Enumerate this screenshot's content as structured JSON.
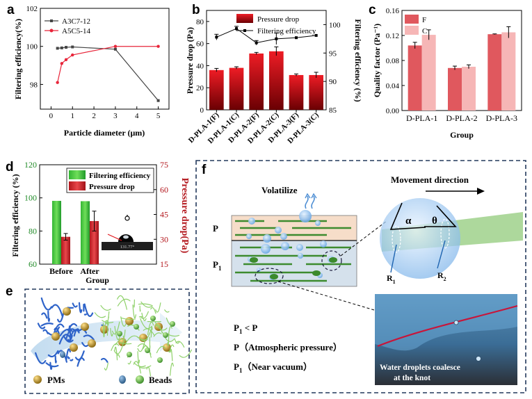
{
  "panel_labels": {
    "a": "a",
    "b": "b",
    "c": "c",
    "d": "d",
    "e": "e",
    "f": "f"
  },
  "chart_data": [
    {
      "panel": "a",
      "type": "line",
      "xlabel": "Particle diameter (μm)",
      "ylabel": "Filtering efficiency(%)",
      "xlim": [
        -0.5,
        5.5
      ],
      "ylim": [
        96.7,
        102
      ],
      "xticks": [
        0,
        1,
        2,
        3,
        4,
        5
      ],
      "yticks": [
        98,
        100,
        102
      ],
      "legend_position": "top-left",
      "series": [
        {
          "name": "A3C7-12",
          "color": "#454545",
          "marker": "square",
          "x": [
            0.3,
            0.5,
            0.7,
            1.0,
            3.0,
            5.0
          ],
          "y": [
            99.9,
            99.92,
            99.95,
            99.97,
            99.85,
            97.15
          ]
        },
        {
          "name": "A5C5-14",
          "color": "#e8253a",
          "marker": "circle",
          "x": [
            0.3,
            0.5,
            0.7,
            1.0,
            3.0,
            5.0
          ],
          "y": [
            98.1,
            99.1,
            99.3,
            99.55,
            100.0,
            100.0
          ]
        }
      ]
    },
    {
      "panel": "b",
      "type": "bar",
      "ylabel": "Pressure drop (Pa)",
      "y2label": "Filtering efficiency (%)",
      "categories": [
        "D-PLA-1(F)",
        "D-PLA-1(C)",
        "D-PLA-2(F)",
        "D-PLA-2(C)",
        "D-PLA-3(F)",
        "D-PLA-3(C)"
      ],
      "ylim": [
        0,
        90
      ],
      "yticks": [
        0,
        20,
        40,
        60,
        80
      ],
      "y2lim": [
        85,
        102.5
      ],
      "y2ticks": [
        85,
        90,
        95,
        100
      ],
      "legend_position": "top",
      "series": [
        {
          "name": "Pressure drop",
          "kind": "bar",
          "values": [
            36,
            38,
            51,
            53,
            31.5,
            31.5
          ],
          "errors": [
            1.5,
            1,
            1,
            4,
            1,
            2.5
          ]
        },
        {
          "name": "Filtering efficiency",
          "kind": "line",
          "values": [
            97.8,
            99.3,
            96.8,
            97.5,
            97.7,
            98.1
          ],
          "errors": [
            0.5,
            0.4,
            0.4,
            1,
            0,
            0
          ]
        }
      ]
    },
    {
      "panel": "c",
      "type": "bar",
      "xlabel": "Group",
      "ylabel": "Quality factor (Pa⁻¹)",
      "categories": [
        "D-PLA-1",
        "D-PLA-2",
        "D-PLA-3"
      ],
      "ylim": [
        0,
        0.16
      ],
      "yticks": [
        0.0,
        0.04,
        0.08,
        0.12,
        0.16
      ],
      "ytick_labels": [
        "0.00",
        "0.04",
        "0.08",
        "0.12",
        "0.16"
      ],
      "legend_position": "top-left",
      "series": [
        {
          "name": "F",
          "color": "#e0585e",
          "values": [
            0.104,
            0.068,
            0.122
          ],
          "errors": [
            0.005,
            0.003,
            0.0005
          ]
        },
        {
          "name": "C",
          "color": "#f6b6b6",
          "values": [
            0.121,
            0.07,
            0.125
          ],
          "errors": [
            0.008,
            0.003,
            0.009
          ]
        }
      ]
    },
    {
      "panel": "d",
      "type": "bar",
      "xlabel": "Group",
      "ylabel": "Filtering efficiency (%)",
      "y2label": "Pressure drop(Pa)",
      "categories": [
        "Before",
        "After"
      ],
      "ylim": [
        60,
        120
      ],
      "yticks": [
        60,
        80,
        100,
        120
      ],
      "y2lim": [
        15,
        75
      ],
      "y2ticks": [
        15,
        30,
        45,
        60,
        75
      ],
      "legend_position": "top",
      "inset_text": "131.77°",
      "series": [
        {
          "name": "Filtering efficiency",
          "axis": "left",
          "values": [
            98.2,
            98.0
          ],
          "errors": [
            0,
            0
          ]
        },
        {
          "name": "Pressure drop",
          "axis": "right",
          "values": [
            31.5,
            41
          ],
          "errors": [
            2,
            6
          ]
        }
      ]
    }
  ],
  "panel_e": {
    "legend_pms": "PMs",
    "legend_beads": "Beads"
  },
  "panel_f": {
    "volatilize": "Volatilize",
    "layer_p": "P",
    "layer_p1": "P",
    "layer_p1_sub": "1",
    "movement": "Movement direction",
    "alpha": "α",
    "theta": "θ",
    "r1": "R",
    "r1_sub": "1",
    "r2": "R",
    "r2_sub": "2",
    "eq1_a": "P",
    "eq1_sub": "1",
    "eq1_b": " < P",
    "eq2": "P（Atmospheric pressure）",
    "eq3_a": "P",
    "eq3_sub": "1",
    "eq3_b": "（Near vacuum）",
    "photo_caption_1": "Water droplets coalesce",
    "photo_caption_2": "at the knot"
  }
}
